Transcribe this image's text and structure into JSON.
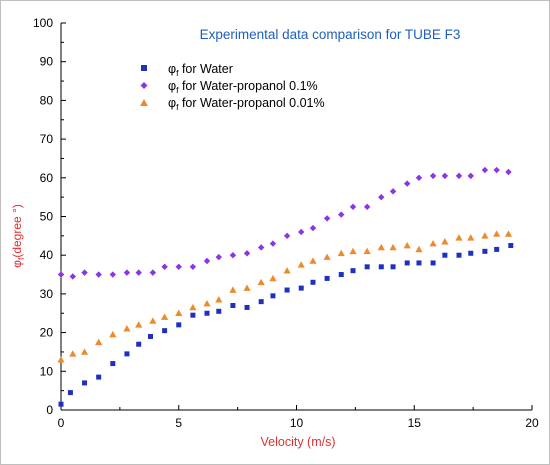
{
  "chart_data": {
    "type": "scatter",
    "title": "Experimental data comparison for TUBE F3",
    "xlabel": "Velocity (m/s)",
    "ylabel_symbol": "φ",
    "ylabel_sub": "f",
    "ylabel_rest": "(degree °)",
    "xlim": [
      0,
      20
    ],
    "ylim": [
      0,
      100
    ],
    "xticks": [
      "0",
      "5",
      "10",
      "15",
      "20"
    ],
    "yticks": [
      "0",
      "10",
      "20",
      "30",
      "40",
      "50",
      "60",
      "70",
      "80",
      "90",
      "100"
    ],
    "grid": false,
    "legend_position": "top-left",
    "colors": {
      "title": "#1f5fbf",
      "xlabel": "#e03030",
      "ylabel": "#e03030",
      "axis": "#000000"
    },
    "series": [
      {
        "name_symbol": "φ",
        "name_sub": "f",
        "name_rest": " for Water",
        "marker": "square",
        "color": "#1f2fbf",
        "x": [
          0.0,
          0.4,
          1.0,
          1.6,
          2.2,
          2.8,
          3.3,
          3.8,
          4.4,
          5.0,
          5.6,
          6.2,
          6.7,
          7.3,
          7.9,
          8.5,
          9.0,
          9.6,
          10.2,
          10.7,
          11.3,
          11.9,
          12.4,
          13.0,
          13.6,
          14.1,
          14.7,
          15.2,
          15.8,
          16.3,
          16.9,
          17.4,
          18.0,
          18.5,
          19.1
        ],
        "y": [
          1.5,
          4.5,
          7.0,
          8.5,
          12.0,
          14.5,
          17.0,
          19.0,
          20.5,
          22.0,
          24.5,
          25.0,
          25.5,
          27.0,
          26.5,
          28.0,
          29.5,
          31.0,
          31.5,
          33.0,
          34.0,
          35.0,
          36.0,
          37.0,
          37.0,
          37.0,
          38.0,
          38.0,
          38.0,
          40.0,
          40.0,
          40.5,
          41.0,
          41.5,
          42.5
        ]
      },
      {
        "name_symbol": "φ",
        "name_sub": "f",
        "name_rest": " for Water-propanol 0.1%",
        "marker": "diamond",
        "color": "#8a35e6",
        "x": [
          0.0,
          0.5,
          1.0,
          1.6,
          2.2,
          2.8,
          3.3,
          3.9,
          4.4,
          5.0,
          5.6,
          6.2,
          6.7,
          7.3,
          7.9,
          8.5,
          9.0,
          9.6,
          10.2,
          10.7,
          11.3,
          11.9,
          12.4,
          13.0,
          13.6,
          14.1,
          14.7,
          15.2,
          15.8,
          16.3,
          16.9,
          17.4,
          18.0,
          18.5,
          19.0
        ],
        "y": [
          35.0,
          34.5,
          35.5,
          35.0,
          35.0,
          35.5,
          35.5,
          35.5,
          37.0,
          37.0,
          37.0,
          38.5,
          39.5,
          40.0,
          40.5,
          42.0,
          43.0,
          45.0,
          46.0,
          47.0,
          49.5,
          50.5,
          52.5,
          52.5,
          55.0,
          56.5,
          58.5,
          60.0,
          60.5,
          60.5,
          60.5,
          60.5,
          62.0,
          62.0,
          61.5
        ]
      },
      {
        "name_symbol": "φ",
        "name_sub": "f",
        "name_rest": " for Water-propanol 0.01%",
        "marker": "triangle",
        "color": "#ee8a2a",
        "x": [
          0.0,
          0.5,
          1.0,
          1.6,
          2.2,
          2.8,
          3.3,
          3.9,
          4.4,
          5.0,
          5.6,
          6.2,
          6.7,
          7.3,
          7.9,
          8.5,
          9.0,
          9.6,
          10.2,
          10.7,
          11.3,
          11.9,
          12.4,
          13.0,
          13.6,
          14.1,
          14.7,
          15.2,
          15.8,
          16.3,
          16.9,
          17.4,
          18.0,
          18.5,
          19.0
        ],
        "y": [
          13.0,
          14.5,
          15.0,
          17.5,
          19.5,
          21.0,
          22.0,
          23.0,
          24.0,
          25.0,
          26.5,
          27.5,
          28.5,
          31.0,
          31.5,
          33.0,
          34.0,
          36.0,
          37.5,
          38.5,
          39.5,
          40.5,
          41.0,
          41.0,
          42.0,
          42.0,
          42.5,
          41.5,
          43.0,
          43.5,
          44.5,
          44.5,
          45.0,
          45.5,
          45.5
        ]
      }
    ]
  }
}
